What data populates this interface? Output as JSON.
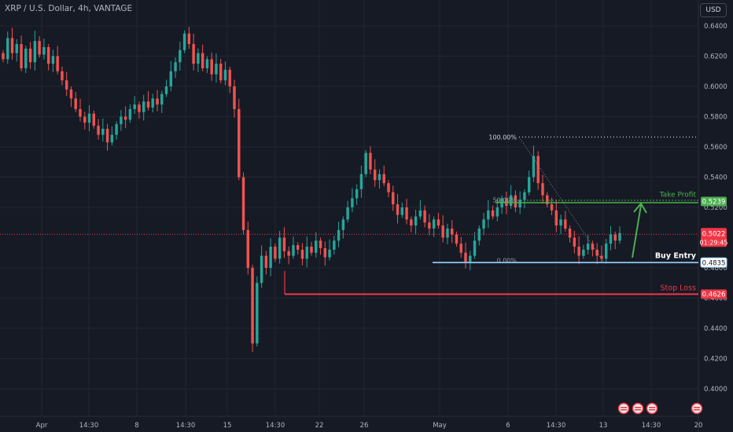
{
  "symbol_title": "XRP / U.S. Dollar, 4h, VANTAGE",
  "currency_button": "USD",
  "colors": {
    "background": "#161a25",
    "grid": "#232632",
    "up": "#26a69a",
    "down": "#ef5350",
    "axis_text": "#b2b5be",
    "take_profit": "#4caf50",
    "buy_entry": "#90caf9",
    "stop_loss": "#f23645",
    "current_price": "#f23645"
  },
  "chart_data": {
    "type": "candlestick",
    "interval": "4h",
    "ylim": [
      0.39,
      0.648
    ],
    "y_ticks": [
      "0.6400",
      "0.6200",
      "0.6000",
      "0.5800",
      "0.5600",
      "0.5400",
      "0.5200",
      "0.4800",
      "0.4600",
      "0.4400",
      "0.4200",
      "0.4000"
    ],
    "x_tick_labels": [
      "Apr",
      "14:30",
      "8",
      "14:30",
      "15",
      "14:30",
      "22",
      "26",
      "May",
      "6",
      "14:30",
      "13",
      "14:30",
      "20"
    ],
    "fibonacci": {
      "level_100_label": "100.00%",
      "level_100_value": 0.5665,
      "level_50_label": "50.00%",
      "level_0_label": "0.00%",
      "level_0_value": 0.4835
    },
    "annotations": {
      "take_profit_label": "Take Profit",
      "take_profit_value": "0.5239",
      "buy_entry_label": "Buy Entry",
      "buy_entry_value": "0.4835",
      "stop_loss_label": "Stop Loss",
      "stop_loss_value": "0.4626",
      "current_price_value": "0.5022",
      "countdown": "01:29:45"
    },
    "price_path": [
      0.618,
      0.632,
      0.622,
      0.628,
      0.612,
      0.625,
      0.616,
      0.63,
      0.621,
      0.626,
      0.615,
      0.62,
      0.61,
      0.604,
      0.598,
      0.592,
      0.585,
      0.58,
      0.576,
      0.582,
      0.574,
      0.568,
      0.572,
      0.563,
      0.568,
      0.575,
      0.58,
      0.578,
      0.585,
      0.588,
      0.583,
      0.59,
      0.586,
      0.592,
      0.588,
      0.595,
      0.6,
      0.61,
      0.616,
      0.624,
      0.635,
      0.628,
      0.615,
      0.622,
      0.612,
      0.618,
      0.608,
      0.615,
      0.604,
      0.611,
      0.6,
      0.585,
      0.54,
      0.505,
      0.48,
      0.43,
      0.47,
      0.488,
      0.48,
      0.494,
      0.486,
      0.5,
      0.491,
      0.488,
      0.495,
      0.492,
      0.486,
      0.494,
      0.49,
      0.498,
      0.493,
      0.487,
      0.492,
      0.498,
      0.505,
      0.512,
      0.52,
      0.526,
      0.532,
      0.542,
      0.556,
      0.545,
      0.538,
      0.542,
      0.536,
      0.53,
      0.522,
      0.515,
      0.52,
      0.512,
      0.508,
      0.514,
      0.518,
      0.51,
      0.506,
      0.512,
      0.508,
      0.5,
      0.506,
      0.502,
      0.496,
      0.49,
      0.484,
      0.488,
      0.498,
      0.506,
      0.512,
      0.518,
      0.514,
      0.52,
      0.526,
      0.521,
      0.528,
      0.52,
      0.525,
      0.53,
      0.54,
      0.554,
      0.536,
      0.528,
      0.522,
      0.518,
      0.508,
      0.512,
      0.506,
      0.5,
      0.494,
      0.488,
      0.492,
      0.496,
      0.492,
      0.488,
      0.486,
      0.496,
      0.502,
      0.498,
      0.503
    ]
  }
}
